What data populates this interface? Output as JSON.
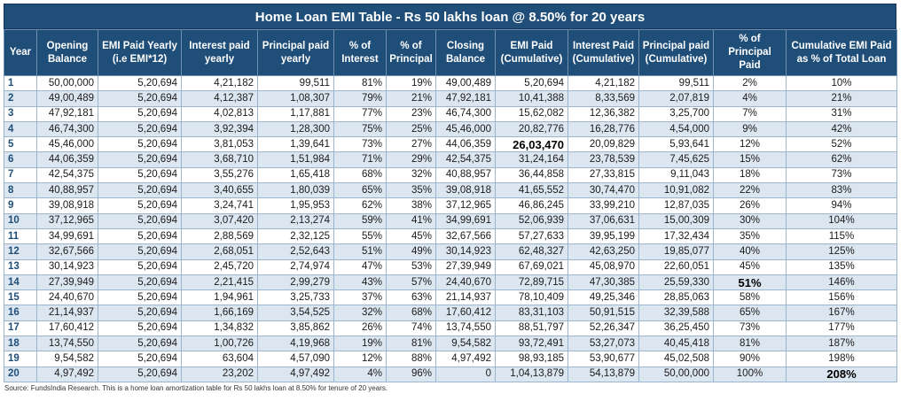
{
  "title": "Home Loan EMI Table - Rs 50 lakhs loan @ 8.50% for 20 years",
  "headers": [
    "Year",
    "Opening Balance",
    "EMI Paid Yearly (i.e EMI*12)",
    "Interest paid yearly",
    "Principal paid yearly",
    "% of Interest",
    "% of Principal",
    "Closing Balance",
    "EMI Paid (Cumulative)",
    "Interest Paid (Cumulative)",
    "Principal paid (Cumulative)",
    "% of Principal Paid",
    "Cumulative EMI Paid as % of Total Loan"
  ],
  "rows": [
    [
      "1",
      "50,00,000",
      "5,20,694",
      "4,21,182",
      "99,511",
      "81%",
      "19%",
      "49,00,489",
      "5,20,694",
      "4,21,182",
      "99,511",
      "2%",
      "10%"
    ],
    [
      "2",
      "49,00,489",
      "5,20,694",
      "4,12,387",
      "1,08,307",
      "79%",
      "21%",
      "47,92,181",
      "10,41,388",
      "8,33,569",
      "2,07,819",
      "4%",
      "21%"
    ],
    [
      "3",
      "47,92,181",
      "5,20,694",
      "4,02,813",
      "1,17,881",
      "77%",
      "23%",
      "46,74,300",
      "15,62,082",
      "12,36,382",
      "3,25,700",
      "7%",
      "31%"
    ],
    [
      "4",
      "46,74,300",
      "5,20,694",
      "3,92,394",
      "1,28,300",
      "75%",
      "25%",
      "45,46,000",
      "20,82,776",
      "16,28,776",
      "4,54,000",
      "9%",
      "42%"
    ],
    [
      "5",
      "45,46,000",
      "5,20,694",
      "3,81,053",
      "1,39,641",
      "73%",
      "27%",
      "44,06,359",
      "26,03,470",
      "20,09,829",
      "5,93,641",
      "12%",
      "52%"
    ],
    [
      "6",
      "44,06,359",
      "5,20,694",
      "3,68,710",
      "1,51,984",
      "71%",
      "29%",
      "42,54,375",
      "31,24,164",
      "23,78,539",
      "7,45,625",
      "15%",
      "62%"
    ],
    [
      "7",
      "42,54,375",
      "5,20,694",
      "3,55,276",
      "1,65,418",
      "68%",
      "32%",
      "40,88,957",
      "36,44,858",
      "27,33,815",
      "9,11,043",
      "18%",
      "73%"
    ],
    [
      "8",
      "40,88,957",
      "5,20,694",
      "3,40,655",
      "1,80,039",
      "65%",
      "35%",
      "39,08,918",
      "41,65,552",
      "30,74,470",
      "10,91,082",
      "22%",
      "83%"
    ],
    [
      "9",
      "39,08,918",
      "5,20,694",
      "3,24,741",
      "1,95,953",
      "62%",
      "38%",
      "37,12,965",
      "46,86,245",
      "33,99,210",
      "12,87,035",
      "26%",
      "94%"
    ],
    [
      "10",
      "37,12,965",
      "5,20,694",
      "3,07,420",
      "2,13,274",
      "59%",
      "41%",
      "34,99,691",
      "52,06,939",
      "37,06,631",
      "15,00,309",
      "30%",
      "104%"
    ],
    [
      "11",
      "34,99,691",
      "5,20,694",
      "2,88,569",
      "2,32,125",
      "55%",
      "45%",
      "32,67,566",
      "57,27,633",
      "39,95,199",
      "17,32,434",
      "35%",
      "115%"
    ],
    [
      "12",
      "32,67,566",
      "5,20,694",
      "2,68,051",
      "2,52,643",
      "51%",
      "49%",
      "30,14,923",
      "62,48,327",
      "42,63,250",
      "19,85,077",
      "40%",
      "125%"
    ],
    [
      "13",
      "30,14,923",
      "5,20,694",
      "2,45,720",
      "2,74,974",
      "47%",
      "53%",
      "27,39,949",
      "67,69,021",
      "45,08,970",
      "22,60,051",
      "45%",
      "135%"
    ],
    [
      "14",
      "27,39,949",
      "5,20,694",
      "2,21,415",
      "2,99,279",
      "43%",
      "57%",
      "24,40,670",
      "72,89,715",
      "47,30,385",
      "25,59,330",
      "51%",
      "146%"
    ],
    [
      "15",
      "24,40,670",
      "5,20,694",
      "1,94,961",
      "3,25,733",
      "37%",
      "63%",
      "21,14,937",
      "78,10,409",
      "49,25,346",
      "28,85,063",
      "58%",
      "156%"
    ],
    [
      "16",
      "21,14,937",
      "5,20,694",
      "1,66,169",
      "3,54,525",
      "32%",
      "68%",
      "17,60,412",
      "83,31,103",
      "50,91,515",
      "32,39,588",
      "65%",
      "167%"
    ],
    [
      "17",
      "17,60,412",
      "5,20,694",
      "1,34,832",
      "3,85,862",
      "26%",
      "74%",
      "13,74,550",
      "88,51,797",
      "52,26,347",
      "36,25,450",
      "73%",
      "177%"
    ],
    [
      "18",
      "13,74,550",
      "5,20,694",
      "1,00,726",
      "4,19,968",
      "19%",
      "81%",
      "9,54,582",
      "93,72,491",
      "53,27,073",
      "40,45,418",
      "81%",
      "187%"
    ],
    [
      "19",
      "9,54,582",
      "5,20,694",
      "63,604",
      "4,57,090",
      "12%",
      "88%",
      "4,97,492",
      "98,93,185",
      "53,90,677",
      "45,02,508",
      "90%",
      "198%"
    ],
    [
      "20",
      "4,97,492",
      "5,20,694",
      "23,202",
      "4,97,492",
      "4%",
      "96%",
      "0",
      "1,04,13,879",
      "54,13,879",
      "50,00,000",
      "100%",
      "208%"
    ]
  ],
  "highlighted_cells": [
    {
      "row": 5,
      "column": "EMI Paid (Cumulative)"
    },
    {
      "row": 14,
      "column": "% of Principal Paid"
    },
    {
      "row": 20,
      "column": "Cumulative EMI Paid as % of Total Loan"
    }
  ],
  "source": "Source: FundsIndia Research. This is a home loan amortization table for Rs 50 lakhs loan at 8.50% for tenure of 20 years.",
  "colors": {
    "header_bg": "#1f4e79",
    "header_text": "#ffffff",
    "stripe": "#dce6f1",
    "year_text": "#1f4e79"
  }
}
